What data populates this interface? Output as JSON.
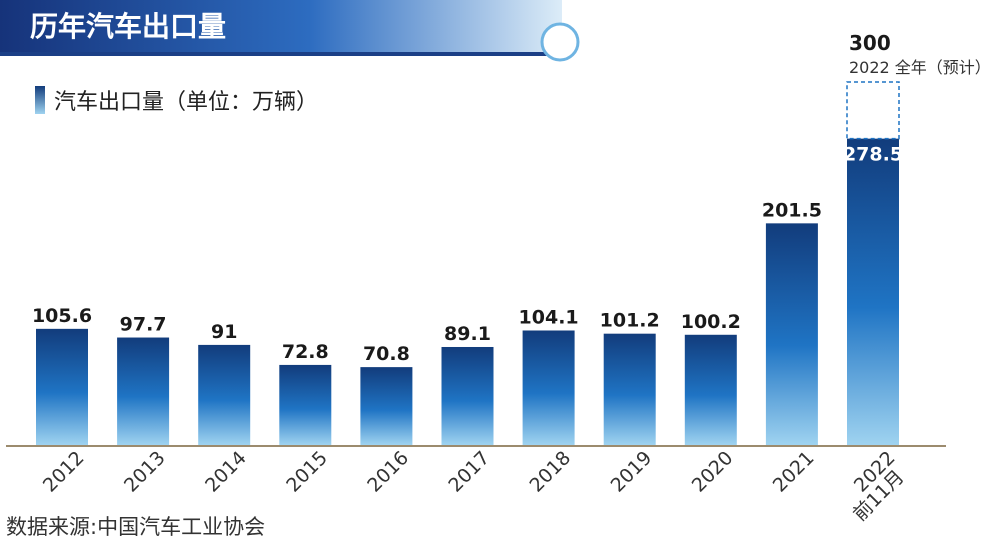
{
  "header": {
    "title": "历年汽车出口量"
  },
  "legend": {
    "label": "汽车出口量（单位：万辆）"
  },
  "source": "数据来源:中国汽车工业协会",
  "colors": {
    "banner_dark": "#16337a",
    "banner_mid": "#2d6cc0",
    "banner_light": "#dcecf8",
    "bar_top": "#123c7c",
    "bar_mid": "#1f74c4",
    "bar_bottom": "#9fd3f0",
    "axis": "#9c8b6e",
    "forecast_border": "#1f74c4"
  },
  "chart_data": {
    "type": "bar",
    "title": "历年汽车出口量",
    "ylabel": "汽车出口量（单位：万辆）",
    "categories": [
      "2012",
      "2013",
      "2014",
      "2015",
      "2016",
      "2017",
      "2018",
      "2019",
      "2020",
      "2021",
      "2022"
    ],
    "category_sublabels": [
      "",
      "",
      "",
      "",
      "",
      "",
      "",
      "",
      "",
      "",
      "前11月"
    ],
    "values": [
      105.6,
      97.7,
      91,
      72.8,
      70.8,
      89.1,
      104.1,
      101.2,
      100.2,
      201.5,
      278.5
    ],
    "value_labels": [
      "105.6",
      "97.7",
      "91",
      "72.8",
      "70.8",
      "89.1",
      "104.1",
      "101.2",
      "100.2",
      "201.5",
      "278.5"
    ],
    "forecast": {
      "category": "2022",
      "value": 300,
      "value_label": "300",
      "note": "2022 全年（预计）"
    },
    "ylim": [
      0,
      300
    ],
    "grid": false
  }
}
